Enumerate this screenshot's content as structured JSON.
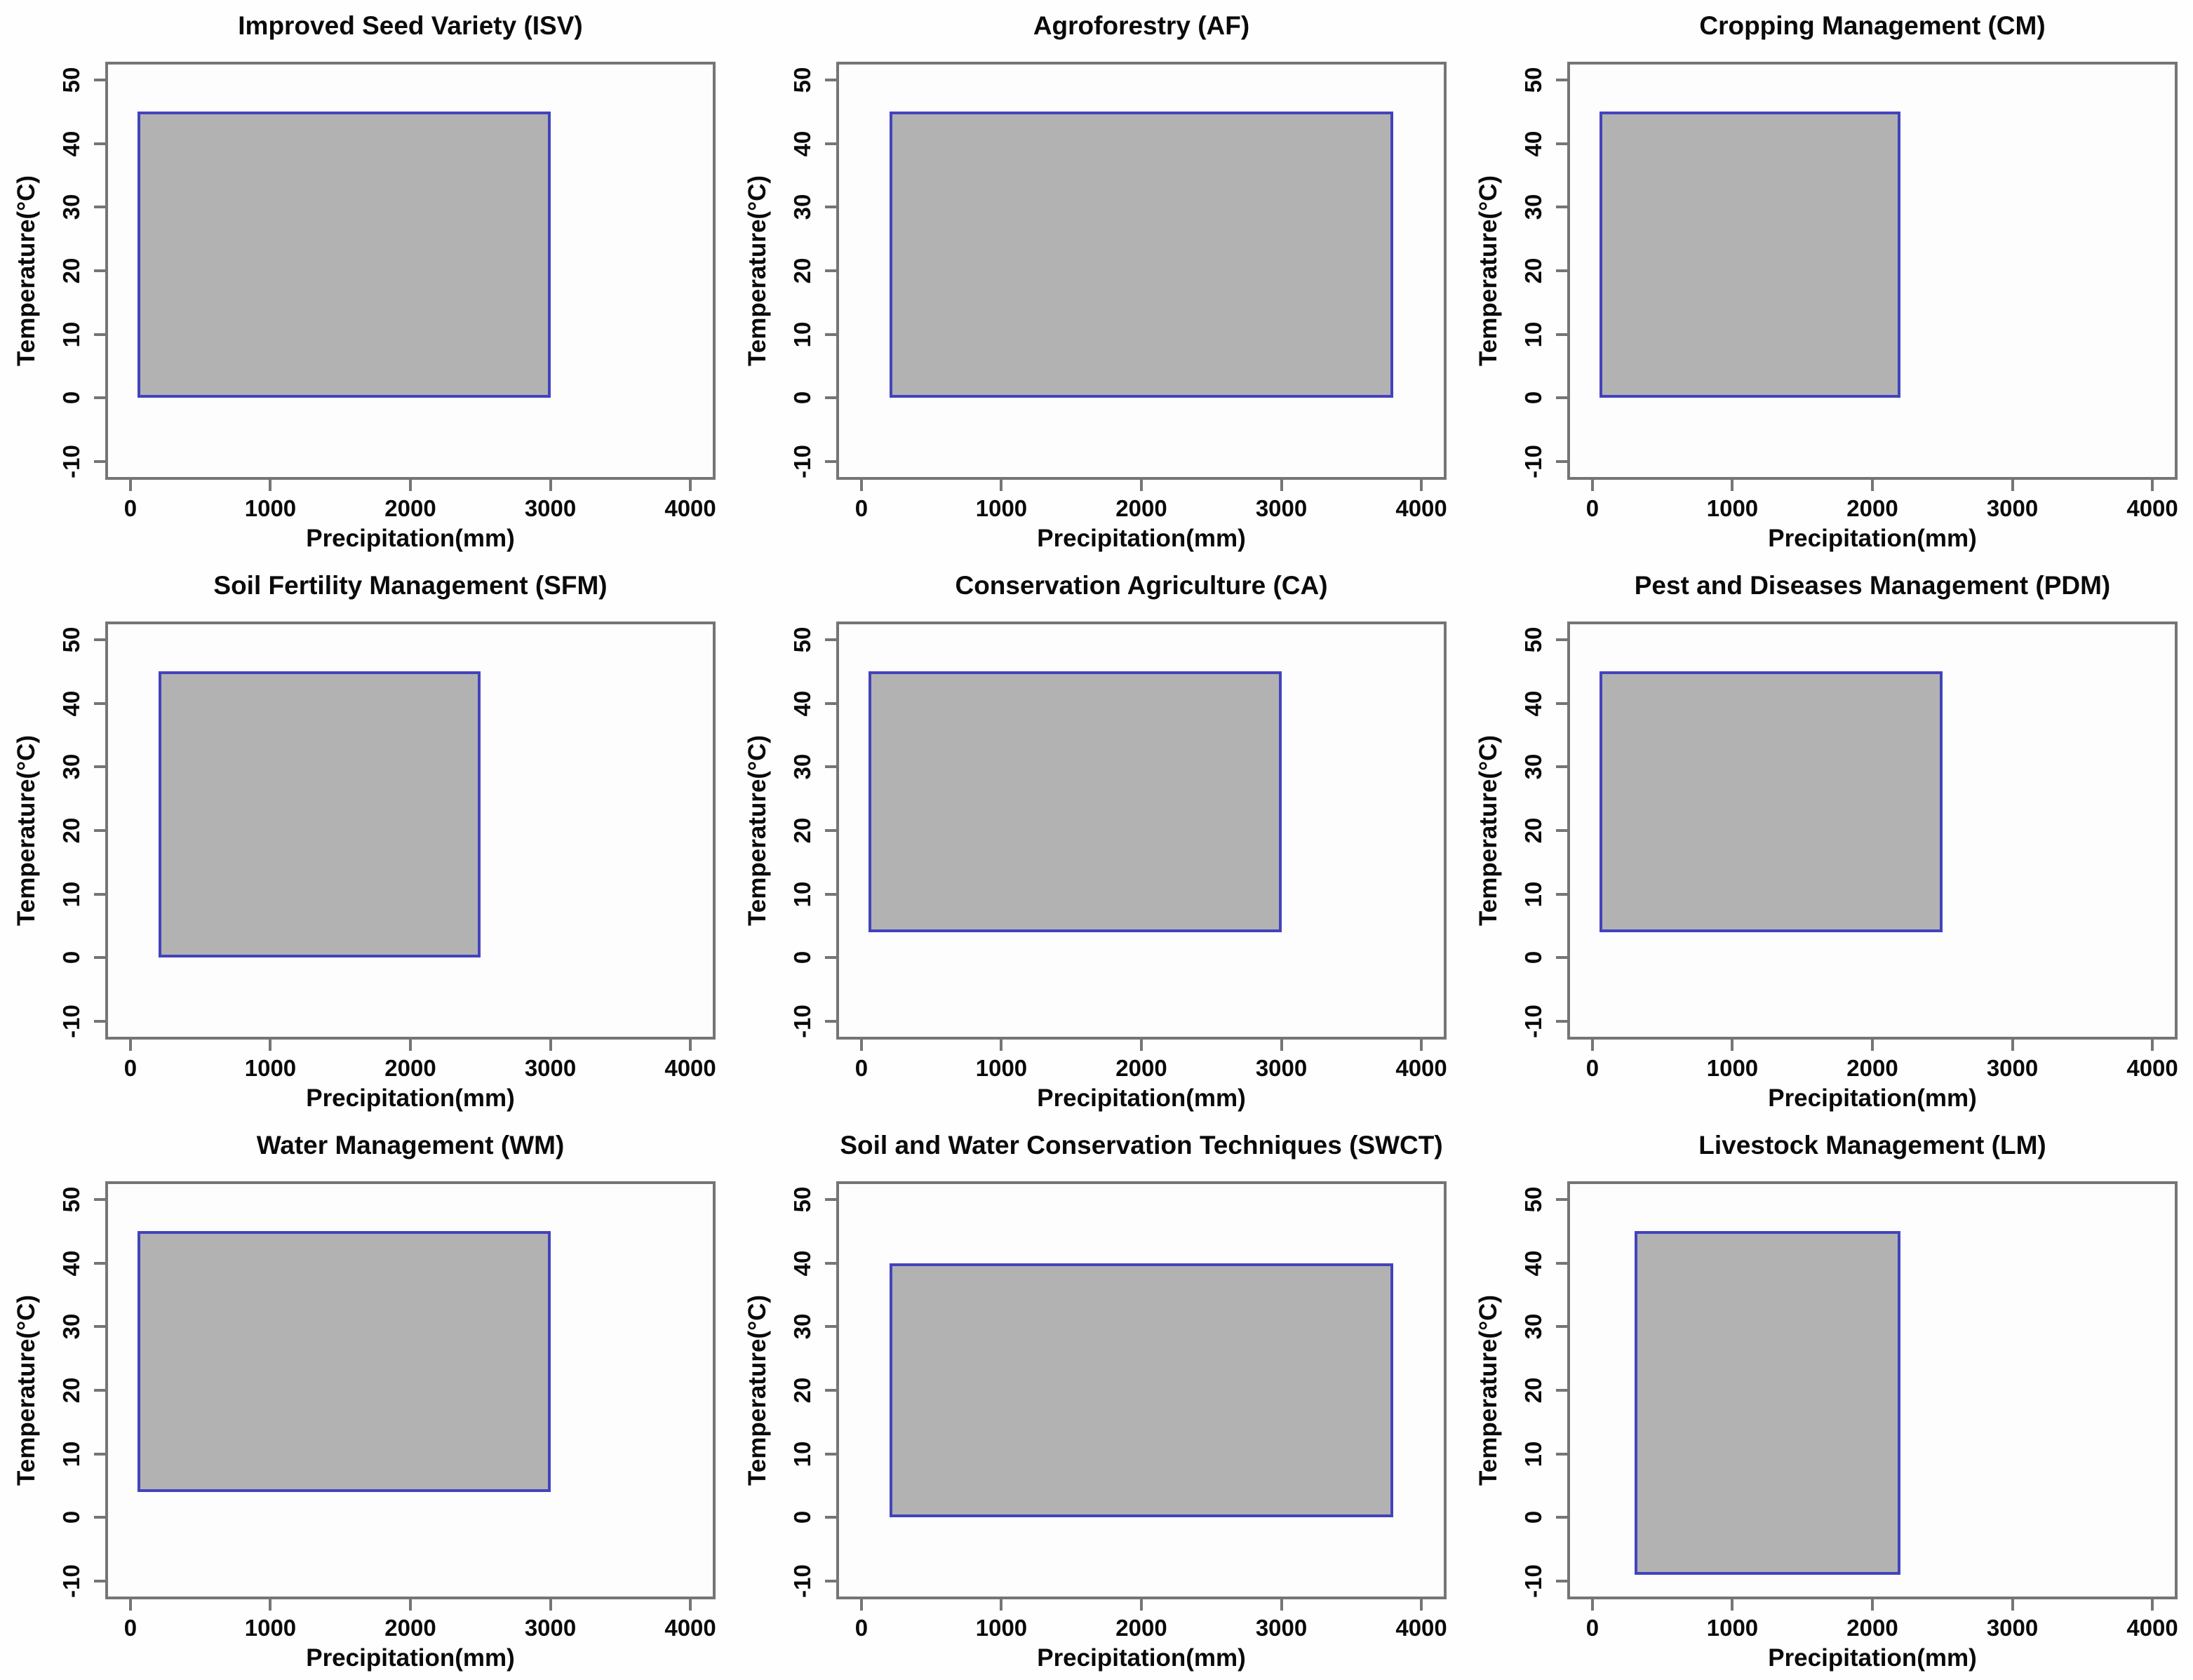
{
  "figure": {
    "layout": "3x3-grid-of-plots",
    "x_axis_label": "Precipitation(mm)",
    "y_axis_label": "Temperature(°C)",
    "x_ticks": [
      0,
      1000,
      2000,
      3000,
      4000
    ],
    "y_ticks": [
      -10,
      0,
      10,
      20,
      30,
      40,
      50
    ],
    "xlim": [
      0,
      4000
    ],
    "ylim": [
      -10,
      50
    ],
    "colors": {
      "range_fill": "#b2b2b2",
      "range_border": "#4343bd",
      "box_border": "#757575",
      "text": "#0a0a0a",
      "plot_background": "#fdfdfd"
    }
  },
  "chart_data": [
    {
      "type": "rect-range",
      "title": "Improved Seed Variety (ISV)",
      "xlabel": "Precipitation(mm)",
      "ylabel": "Temperature(°C)",
      "xlim": [
        0,
        4000
      ],
      "ylim": [
        -10,
        50
      ],
      "precip_range_mm": [
        50,
        3000
      ],
      "temp_range_c": [
        0,
        45
      ]
    },
    {
      "type": "rect-range",
      "title": "Agroforestry (AF)",
      "xlabel": "Precipitation(mm)",
      "ylabel": "Temperature(°C)",
      "xlim": [
        0,
        4000
      ],
      "ylim": [
        -10,
        50
      ],
      "precip_range_mm": [
        200,
        3800
      ],
      "temp_range_c": [
        0,
        45
      ]
    },
    {
      "type": "rect-range",
      "title": "Cropping Management (CM)",
      "xlabel": "Precipitation(mm)",
      "ylabel": "Temperature(°C)",
      "xlim": [
        0,
        4000
      ],
      "ylim": [
        -10,
        50
      ],
      "precip_range_mm": [
        50,
        2200
      ],
      "temp_range_c": [
        0,
        45
      ]
    },
    {
      "type": "rect-range",
      "title": "Soil Fertility Management (SFM)",
      "xlabel": "Precipitation(mm)",
      "ylabel": "Temperature(°C)",
      "xlim": [
        0,
        4000
      ],
      "ylim": [
        -10,
        50
      ],
      "precip_range_mm": [
        200,
        2500
      ],
      "temp_range_c": [
        0,
        45
      ]
    },
    {
      "type": "rect-range",
      "title": "Conservation Agriculture (CA)",
      "xlabel": "Precipitation(mm)",
      "ylabel": "Temperature(°C)",
      "xlim": [
        0,
        4000
      ],
      "ylim": [
        -10,
        50
      ],
      "precip_range_mm": [
        50,
        3000
      ],
      "temp_range_c": [
        4,
        45
      ]
    },
    {
      "type": "rect-range",
      "title": "Pest and Diseases Management (PDM)",
      "xlabel": "Precipitation(mm)",
      "ylabel": "Temperature(°C)",
      "xlim": [
        0,
        4000
      ],
      "ylim": [
        -10,
        50
      ],
      "precip_range_mm": [
        50,
        2500
      ],
      "temp_range_c": [
        4,
        45
      ]
    },
    {
      "type": "rect-range",
      "title": "Water Management (WM)",
      "xlabel": "Precipitation(mm)",
      "ylabel": "Temperature(°C)",
      "xlim": [
        0,
        4000
      ],
      "ylim": [
        -10,
        50
      ],
      "precip_range_mm": [
        50,
        3000
      ],
      "temp_range_c": [
        4,
        45
      ]
    },
    {
      "type": "rect-range",
      "title": "Soil and Water Conservation Techniques (SWCT)",
      "xlabel": "Precipitation(mm)",
      "ylabel": "Temperature(°C)",
      "xlim": [
        0,
        4000
      ],
      "ylim": [
        -10,
        50
      ],
      "precip_range_mm": [
        200,
        3800
      ],
      "temp_range_c": [
        0,
        40
      ]
    },
    {
      "type": "rect-range",
      "title": "Livestock Management (LM)",
      "xlabel": "Precipitation(mm)",
      "ylabel": "Temperature(°C)",
      "xlim": [
        0,
        4000
      ],
      "ylim": [
        -10,
        50
      ],
      "precip_range_mm": [
        300,
        2200
      ],
      "temp_range_c": [
        -9,
        45
      ]
    }
  ]
}
